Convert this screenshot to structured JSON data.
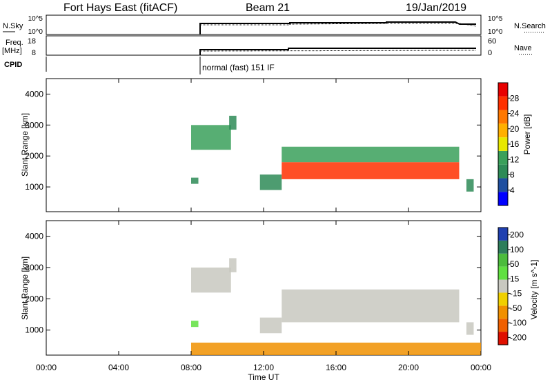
{
  "header": {
    "station": "Fort Hays East (fitACF)",
    "beam": "Beam 21",
    "date": "19/Jan/2019"
  },
  "noise_panel": {
    "left_label": "N.Sky",
    "left_ticks": [
      "10^5",
      "10^0"
    ],
    "right_label": "N.Search",
    "right_ticks": [
      "10^5",
      "10^0"
    ]
  },
  "freq_panel": {
    "left_label_line1": "Freq.",
    "left_label_line2": "[MHz]",
    "left_ticks": [
      "18",
      "8"
    ],
    "right_label": "Nave",
    "right_ticks": [
      "60",
      "0"
    ]
  },
  "cpid_panel": {
    "label": "CPID",
    "annotation": "normal (fast) 151 IF"
  },
  "colors": {
    "power_scale": [
      "#0000ff",
      "#1f4fa0",
      "#2e8b57",
      "#3aa05a",
      "#e8e800",
      "#ffb000",
      "#ff7800",
      "#ff3000",
      "#e80000"
    ],
    "velocity_scale": [
      "#2040b0",
      "#2e7d5b",
      "#4cbc3c",
      "#60e040",
      "#c8c8c0",
      "#f0d000",
      "#f09000",
      "#f06000",
      "#e01000"
    ]
  },
  "chart_data": [
    {
      "type": "heatmap",
      "title": "Power",
      "xlabel": "Time UT",
      "ylabel": "Slant Range [km]",
      "xlim": [
        0,
        24
      ],
      "ylim": [
        200,
        4500
      ],
      "x_tick_labels": [
        "00:00",
        "04:00",
        "08:00",
        "12:00",
        "16:00",
        "20:00",
        "00:00"
      ],
      "y_tick_labels": [
        "1000",
        "2000",
        "3000",
        "4000"
      ],
      "colorbar": {
        "label": "Power [dB]",
        "range": [
          0,
          32
        ],
        "tick_labels": [
          "4",
          "8",
          "12",
          "16",
          "20",
          "24",
          "28"
        ]
      },
      "regions": [
        {
          "x": [
            8.0,
            10.2
          ],
          "y": [
            2200,
            3000
          ],
          "value": 12
        },
        {
          "x": [
            10.1,
            10.5
          ],
          "y": [
            2850,
            3300
          ],
          "value": 10
        },
        {
          "x": [
            8.0,
            8.4
          ],
          "y": [
            1100,
            1300
          ],
          "value": 8
        },
        {
          "x": [
            11.8,
            13.0
          ],
          "y": [
            900,
            1400
          ],
          "value": 9
        },
        {
          "x": [
            13.0,
            22.8
          ],
          "y": [
            1250,
            1800
          ],
          "value": 25
        },
        {
          "x": [
            13.0,
            22.8
          ],
          "y": [
            1800,
            2300
          ],
          "value": 13
        },
        {
          "x": [
            23.2,
            23.6
          ],
          "y": [
            850,
            1250
          ],
          "value": 9
        }
      ],
      "grid": false
    },
    {
      "type": "heatmap",
      "title": "Velocity",
      "xlabel": "Time UT",
      "ylabel": "Slant Range [km]",
      "xlim": [
        0,
        24
      ],
      "ylim": [
        200,
        4500
      ],
      "x_tick_labels": [
        "00:00",
        "04:00",
        "08:00",
        "12:00",
        "16:00",
        "20:00",
        "00:00"
      ],
      "y_tick_labels": [
        "1000",
        "2000",
        "3000",
        "4000"
      ],
      "colorbar": {
        "label": "Velocity [m s^-1]",
        "range": [
          -250,
          250
        ],
        "tick_labels": [
          "200",
          "100",
          "50",
          "15",
          "-15",
          "-50",
          "-100",
          "-200"
        ]
      },
      "regions": [
        {
          "x": [
            8.0,
            10.2
          ],
          "y": [
            2200,
            3000
          ],
          "value": 0
        },
        {
          "x": [
            10.1,
            10.5
          ],
          "y": [
            2850,
            3300
          ],
          "value": 0
        },
        {
          "x": [
            8.0,
            8.4
          ],
          "y": [
            1100,
            1300
          ],
          "value": 60
        },
        {
          "x": [
            11.8,
            13.0
          ],
          "y": [
            900,
            1400
          ],
          "value": 0
        },
        {
          "x": [
            13.0,
            22.8
          ],
          "y": [
            1250,
            2300
          ],
          "value": 0
        },
        {
          "x": [
            23.2,
            23.6
          ],
          "y": [
            850,
            1250
          ],
          "value": 0
        },
        {
          "x": [
            8.0,
            24.0
          ],
          "y": [
            200,
            600
          ],
          "value": -100
        }
      ],
      "grid": false
    }
  ]
}
